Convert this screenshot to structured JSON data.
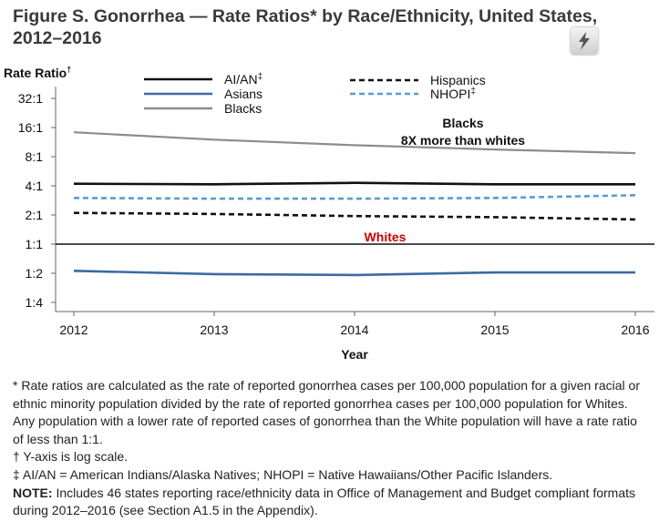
{
  "figure": {
    "title_line1": "Figure S. Gonorrhea — Rate Ratios* by Race/Ethnicity, United States,",
    "title_line2": "2012–2016"
  },
  "chart_data": {
    "type": "line",
    "y_scale": "log2",
    "ylabel": "Rate Ratio",
    "ylabel_mark": "†",
    "xlabel": "Year",
    "x": [
      2012,
      2013,
      2014,
      2015,
      2016
    ],
    "y_ticks": [
      {
        "label": "32:1",
        "value": 32
      },
      {
        "label": "16:1",
        "value": 16
      },
      {
        "label": "8:1",
        "value": 8
      },
      {
        "label": "4:1",
        "value": 4
      },
      {
        "label": "2:1",
        "value": 2
      },
      {
        "label": "1:1",
        "value": 1
      },
      {
        "label": "1:2",
        "value": 0.5
      },
      {
        "label": "1:4",
        "value": 0.25
      }
    ],
    "ylim": [
      0.25,
      32
    ],
    "reference_line": {
      "label": "Whites",
      "value": 1,
      "label_color": "#cc0000"
    },
    "annotation": {
      "line1": "Blacks",
      "line2": "8X more than whites"
    },
    "legend_position": "top",
    "series": [
      {
        "name": "AI/AN",
        "mark": "‡",
        "color": "#111111",
        "dash": "solid",
        "values": [
          4.2,
          4.15,
          4.3,
          4.15,
          4.15
        ]
      },
      {
        "name": "Asians",
        "color": "#3d6aa3",
        "dash": "solid",
        "values": [
          0.53,
          0.49,
          0.48,
          0.51,
          0.51
        ]
      },
      {
        "name": "Blacks",
        "color": "#8c8c8c",
        "dash": "solid",
        "values": [
          14.3,
          12.0,
          10.5,
          9.5,
          8.7
        ]
      },
      {
        "name": "Hispanics",
        "color": "#111111",
        "dash": "dashed",
        "values": [
          2.1,
          2.05,
          1.95,
          1.9,
          1.8
        ]
      },
      {
        "name": "NHOPI",
        "mark": "‡",
        "color": "#5b9bd5",
        "dash": "dashed",
        "values": [
          3.0,
          2.95,
          2.95,
          3.0,
          3.2
        ]
      }
    ]
  },
  "footnotes": {
    "rate_ratio": "* Rate ratios are calculated as the rate of reported gonorrhea cases per 100,000 population for a given racial or ethnic minority population divided by the rate of reported gonorrhea cases per 100,000 population for Whites. Any population with a lower rate of reported cases of gonorrhea than the White population will have a rate ratio of less than 1:1.",
    "log_scale": "† Y-axis is log scale.",
    "abbreviations": "‡ AI/AN = American Indians/Alaska Natives; NHOPI = Native Hawaiians/Other Pacific Islanders.",
    "note_label": "NOTE:",
    "note_text": " Includes 46 states reporting race/ethnicity data in Office of Management and Budget compliant formats during 2012–2016 (see Section A1.5 in the Appendix)."
  }
}
